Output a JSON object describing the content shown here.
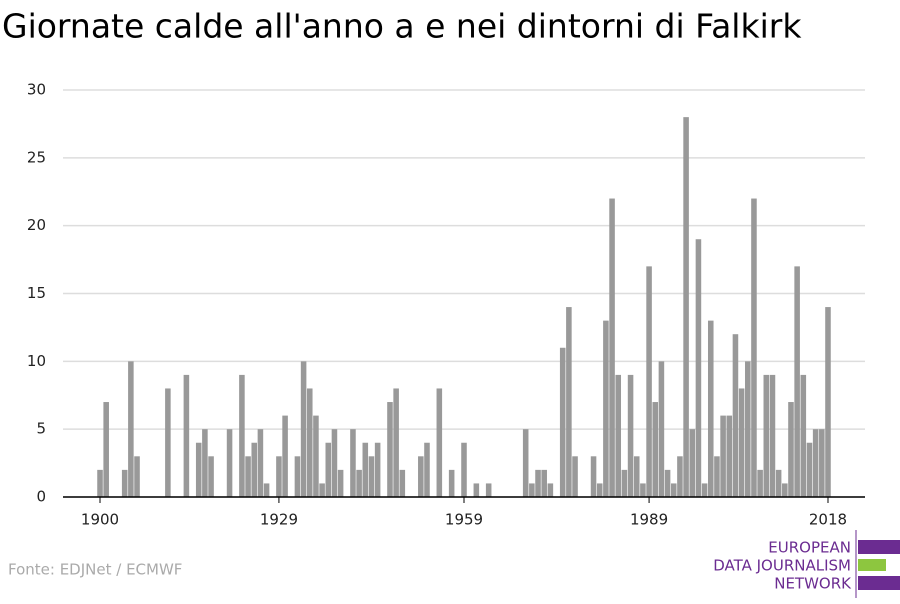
{
  "chart_data": {
    "type": "bar",
    "title": "Giornate calde all'anno a e nei dintorni di Falkirk",
    "source": "Fonte: EDJNet / ECMWF",
    "logo": [
      "EUROPEAN",
      "DATA JOURNALISM",
      "NETWORK"
    ],
    "color": "#999999",
    "x": [
      1900,
      1901,
      1904,
      1905,
      1906,
      1911,
      1914,
      1916,
      1917,
      1918,
      1921,
      1923,
      1924,
      1925,
      1926,
      1927,
      1929,
      1930,
      1932,
      1933,
      1934,
      1935,
      1936,
      1937,
      1938,
      1939,
      1941,
      1942,
      1943,
      1944,
      1945,
      1947,
      1948,
      1949,
      1952,
      1953,
      1955,
      1957,
      1959,
      1961,
      1963,
      1969,
      1970,
      1971,
      1972,
      1973,
      1975,
      1976,
      1977,
      1980,
      1981,
      1982,
      1983,
      1984,
      1985,
      1986,
      1987,
      1988,
      1989,
      1990,
      1991,
      1992,
      1993,
      1994,
      1995,
      1996,
      1997,
      1998,
      1999,
      2000,
      2001,
      2002,
      2003,
      2004,
      2005,
      2006,
      2007,
      2008,
      2009,
      2010,
      2011,
      2012,
      2013,
      2014,
      2015,
      2016,
      2017,
      2018
    ],
    "values": [
      2,
      7,
      2,
      10,
      3,
      8,
      9,
      4,
      5,
      3,
      5,
      9,
      3,
      4,
      5,
      1,
      3,
      6,
      3,
      10,
      8,
      6,
      1,
      4,
      5,
      2,
      5,
      2,
      4,
      3,
      4,
      7,
      8,
      2,
      3,
      4,
      8,
      2,
      4,
      1,
      1,
      5,
      1,
      2,
      2,
      1,
      11,
      14,
      3,
      3,
      1,
      13,
      22,
      9,
      2,
      9,
      3,
      1,
      17,
      7,
      10,
      2,
      1,
      3,
      28,
      5,
      19,
      1,
      13,
      3,
      6,
      6,
      12,
      8,
      10,
      22,
      2,
      9,
      9,
      2,
      1,
      7,
      17,
      9,
      4,
      5,
      5,
      14
    ],
    "xlim": [
      1894,
      2024
    ],
    "xticks": [
      1900,
      1929,
      1959,
      1989,
      2018
    ],
    "ylim": [
      0,
      30
    ],
    "yticks": [
      0,
      5,
      10,
      15,
      20,
      25,
      30
    ],
    "grid": true
  }
}
